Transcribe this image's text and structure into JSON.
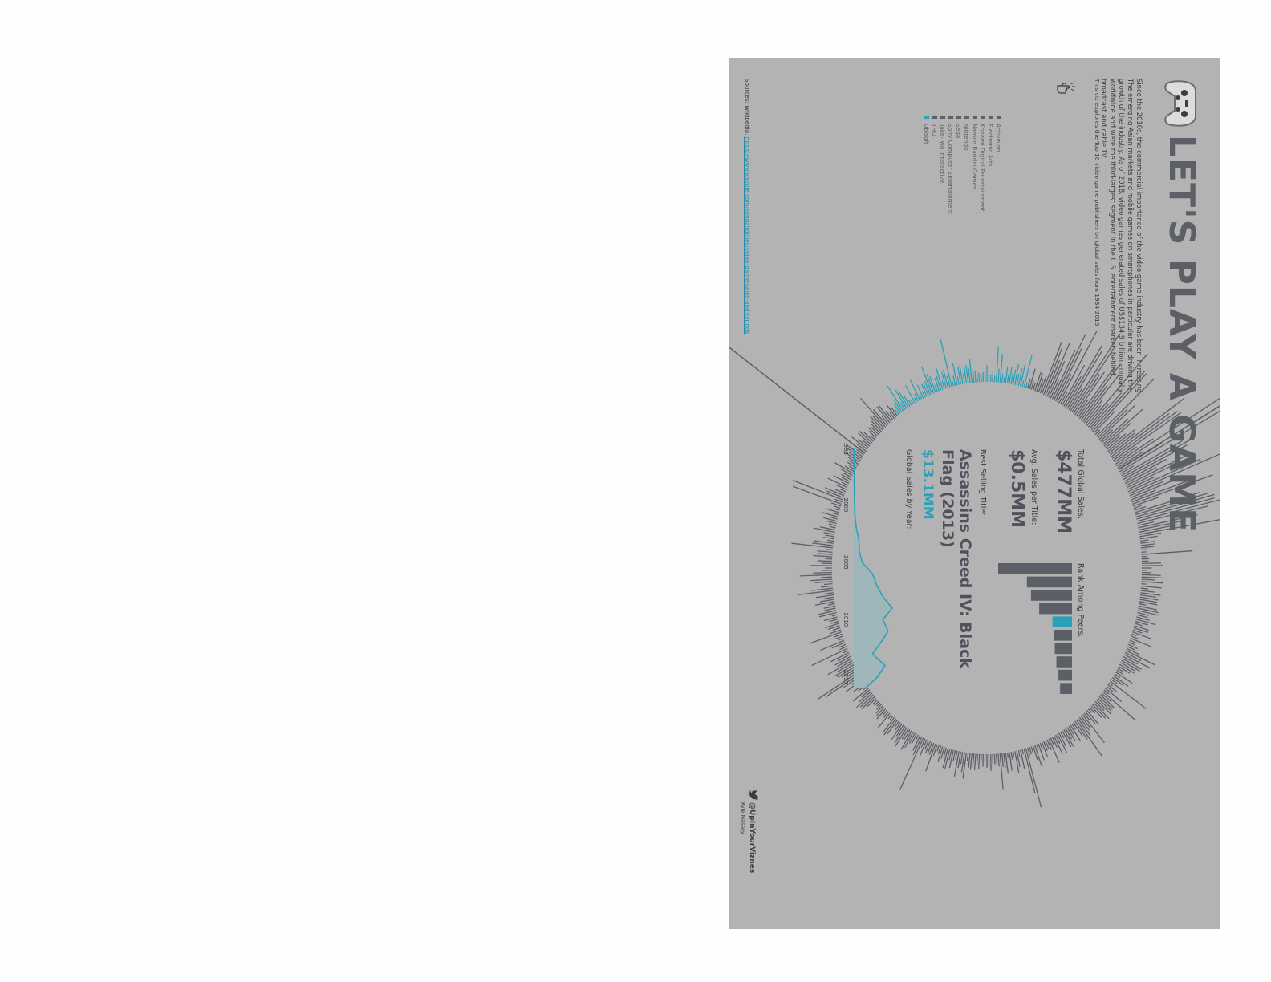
{
  "header": {
    "title": "LET'S PLAY A GAME",
    "intro": "Since the 2010s, the commercial importance of the video game industry has been increasing. The emerging Asian markets and mobile games on smartphones in particular are driving the growth of the industry. As of 2018, video games generated sales of US$134.9 billion annually worldwide and were the third-largest segment in the U.S. entertainment market, behind broadcast and cable TV.",
    "intro2": "This viz explores the Top 10 video game publishers by global sales from 1984-2016."
  },
  "legend": {
    "items": [
      "Activision",
      "Electronic Arts",
      "Konami Digital Entertainment",
      "Namco Bandai Games",
      "Nintendo",
      "Sega",
      "Sony Computer Entertainment",
      "Take-Two Interactive",
      "THQ",
      "Ubisoft"
    ],
    "selected": "Ubisoft"
  },
  "kpis": {
    "total_label": "Total Global Sales:",
    "total_value": "$477MM",
    "avg_label": "Avg. Sales per Title:",
    "avg_value": "$0.5MM",
    "rank_label": "Rank Among Peers:",
    "best_label": "Best Selling Title:",
    "best_title": "Assassins Creed IV: Black Flag (2013)",
    "best_sales": "$13.1MM",
    "by_year_label": "Global Sales by Year:"
  },
  "sources": {
    "label": "Sources: Wikipedia,",
    "link": "https://www.kaggle.com/kendallgillies/video-game-sales-and-ratings"
  },
  "footer": {
    "handle": "@UpInYourViznes",
    "author": "Kyle Massey"
  },
  "colors": {
    "accent": "#2aa1b8",
    "bars": "#5c5f66",
    "background": "#b3b3b3"
  },
  "chart_data": [
    {
      "type": "bar",
      "title": "",
      "xlabel": "",
      "ylabel": "",
      "categories": [
        "1",
        "2",
        "3",
        "4",
        "5",
        "6",
        "7",
        "8",
        "9",
        "10"
      ],
      "values": [
        1800,
        1100,
        1000,
        800,
        477,
        450,
        420,
        380,
        330,
        290
      ],
      "highlight_index": 4,
      "orientation": "vertical"
    },
    {
      "type": "area",
      "title": "",
      "xlabel": "",
      "ylabel": "",
      "x": [
        1995,
        1996,
        1997,
        1998,
        1999,
        2000,
        2001,
        2002,
        2003,
        2004,
        2005,
        2006,
        2007,
        2008,
        2009,
        2010,
        2011,
        2012,
        2013,
        2014,
        2015,
        2016
      ],
      "values": [
        0.2,
        0.3,
        0.5,
        0.5,
        0.6,
        0.8,
        1.2,
        2.5,
        5.0,
        5.3,
        8.0,
        18.0,
        22.0,
        28.0,
        37.0,
        28.0,
        33.0,
        26.0,
        18.0,
        30.0,
        23.0,
        11.0
      ],
      "x_ticks": [
        "1995",
        "2000",
        "2005",
        "2010",
        "2015"
      ],
      "grid": false
    }
  ]
}
